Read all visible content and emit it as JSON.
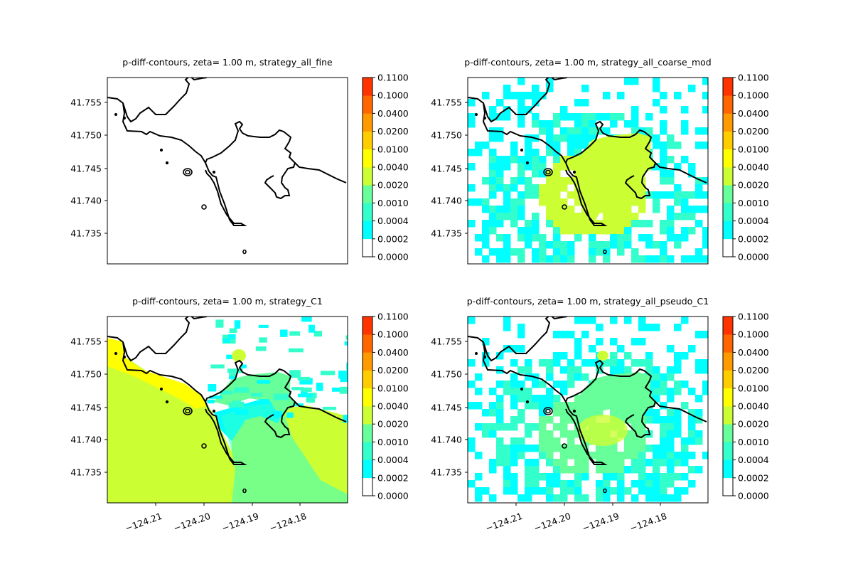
{
  "colorbar": {
    "levels": [
      "0.0000",
      "0.0002",
      "0.0004",
      "0.0010",
      "0.0020",
      "0.0040",
      "0.0100",
      "0.0200",
      "0.0400",
      "0.1000",
      "0.1100"
    ],
    "colors": [
      "#ffffff",
      "#00ffff",
      "#33ffcc",
      "#66ff99",
      "#ccff33",
      "#ffff00",
      "#ffcc00",
      "#ff9900",
      "#ff6600",
      "#ff3300",
      "#ff0000"
    ]
  },
  "chart_data": [
    {
      "type": "heatmap",
      "title": "p-diff-contours, zeta= 1.00 m, strategy_all_fine",
      "ylabel": "",
      "xlabel": "",
      "yticks": [
        "41.755",
        "41.750",
        "41.745",
        "41.740",
        "41.735"
      ],
      "xticks": [],
      "field_level_max": 0
    },
    {
      "type": "heatmap",
      "title": "p-diff-contours, zeta= 1.00 m, strategy_all_coarse_mod",
      "ylabel": "",
      "xlabel": "",
      "yticks": [
        "41.755",
        "41.750",
        "41.745",
        "41.740",
        "41.735"
      ],
      "xticks": [],
      "field_level_max": 4
    },
    {
      "type": "heatmap",
      "title": "p-diff-contours, zeta= 1.00 m, strategy_C1",
      "ylabel": "",
      "xlabel": "",
      "yticks": [
        "41.755",
        "41.750",
        "41.745",
        "41.740",
        "41.735"
      ],
      "xticks": [
        "−124.21",
        "−124.20",
        "−124.19",
        "−124.18"
      ],
      "field_level_max": 5
    },
    {
      "type": "heatmap",
      "title": "p-diff-contours, zeta= 1.00 m, strategy_all_pseudo_C1",
      "ylabel": "",
      "xlabel": "",
      "yticks": [
        "41.755",
        "41.750",
        "41.745",
        "41.740",
        "41.735"
      ],
      "xticks": [
        "−124.21",
        "−124.20",
        "−124.19",
        "−124.18"
      ],
      "field_level_max": 4
    }
  ]
}
